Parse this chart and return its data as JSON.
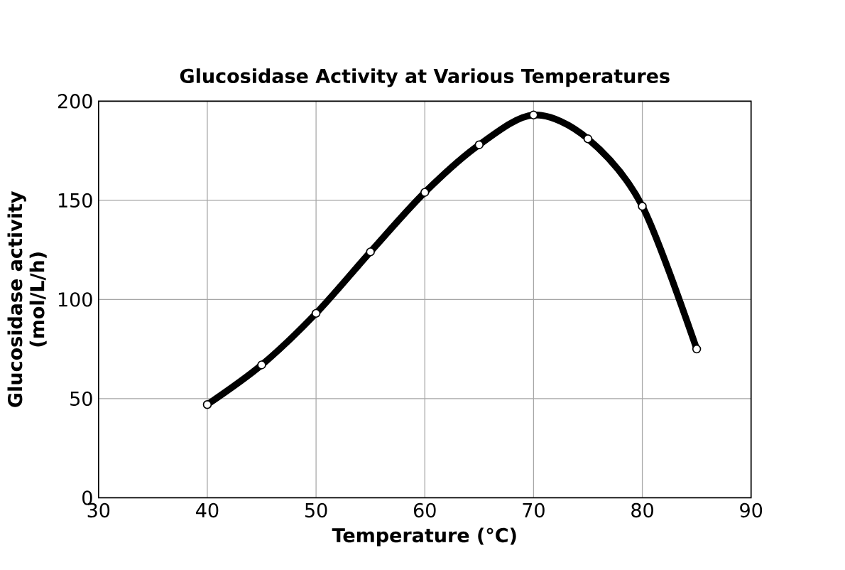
{
  "chart_data": {
    "type": "line",
    "title": "Glucosidase Activity at Various Temperatures",
    "xlabel": "Temperature (°C)",
    "ylabel": "Glucosidase activity\n(mol/L/h)",
    "x": [
      40,
      45,
      50,
      55,
      60,
      65,
      70,
      75,
      80,
      85
    ],
    "values": [
      47,
      67,
      93,
      124,
      154,
      178,
      193,
      181,
      147,
      75
    ],
    "color": "#000000",
    "marker": "circle",
    "line_style": "solid",
    "xlim": [
      30,
      90
    ],
    "xticks": [
      30,
      40,
      50,
      60,
      70,
      80,
      90
    ],
    "ylim": [
      0,
      200
    ],
    "yticks": [
      0,
      50,
      100,
      150,
      200
    ],
    "grid": true
  }
}
